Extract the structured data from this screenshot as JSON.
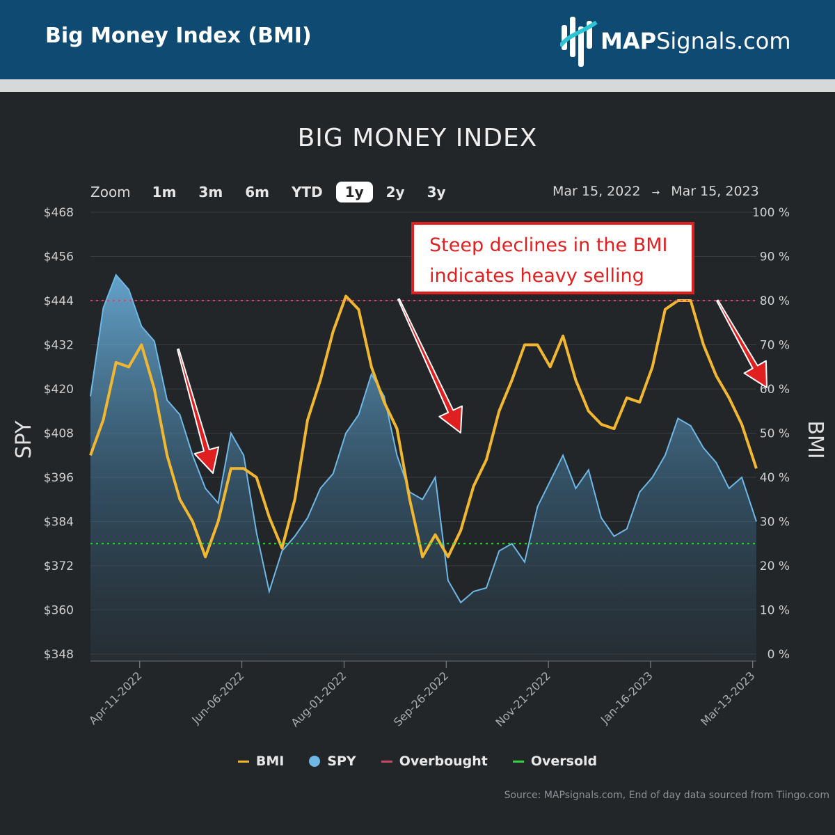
{
  "header": {
    "title": "Big Money Index (BMI)",
    "logo_bold": "MAP",
    "logo_rest": "Signals.com",
    "logo_icon": "mapsignals-bars-logo"
  },
  "toolbar": {
    "zoom_label": "Zoom",
    "zoom_options": [
      "1m",
      "3m",
      "6m",
      "YTD",
      "1y",
      "2y",
      "3y"
    ],
    "active_zoom": "1y",
    "range_start": "Mar 15, 2022",
    "range_arrow": "→",
    "range_end": "Mar 15, 2023"
  },
  "annotation": {
    "line1": "Steep declines in the BMI",
    "line2": "indicates heavy selling"
  },
  "source": "Source: MAPsignals.com, End of day data sourced from Tiingo.com",
  "colors": {
    "bmi": "#f2b731",
    "spy": "#6fb8e6",
    "overbought": "#c94a6a",
    "oversold": "#32d33f",
    "arrow": "#e02020"
  },
  "chart_data": {
    "type": "line",
    "title": "BIG MONEY INDEX",
    "y_left_label": "SPY",
    "y_right_label": "BMI",
    "y_left_ticks": [
      "$468",
      "$456",
      "$444",
      "$432",
      "$420",
      "$408",
      "$396",
      "$384",
      "$372",
      "$360",
      "$348"
    ],
    "y_right_ticks": [
      "100 %",
      "90 %",
      "80 %",
      "70 %",
      "60 %",
      "50 %",
      "40 %",
      "30 %",
      "20 %",
      "10 %",
      "0 %"
    ],
    "y_left_range": [
      348,
      468
    ],
    "y_right_range": [
      0,
      100
    ],
    "x_range": [
      "2022-03-15",
      "2023-03-15"
    ],
    "x_ticks": [
      "Apr-11-2022",
      "Jun-06-2022",
      "Aug-01-2022",
      "Sep-26-2022",
      "Nov-21-2022",
      "Jan-16-2023",
      "Mar-13-2023"
    ],
    "overbought_level": 80,
    "oversold_level": 25,
    "legend": [
      "BMI",
      "SPY",
      "Overbought",
      "Oversold"
    ],
    "legend_position": "bottom",
    "series": [
      {
        "name": "SPY",
        "style": "area",
        "x": [
          "2022-03-15",
          "2022-03-22",
          "2022-03-29",
          "2022-04-05",
          "2022-04-12",
          "2022-04-19",
          "2022-04-26",
          "2022-05-03",
          "2022-05-10",
          "2022-05-17",
          "2022-05-24",
          "2022-05-31",
          "2022-06-07",
          "2022-06-14",
          "2022-06-21",
          "2022-06-28",
          "2022-07-05",
          "2022-07-12",
          "2022-07-19",
          "2022-07-26",
          "2022-08-02",
          "2022-08-09",
          "2022-08-16",
          "2022-08-23",
          "2022-08-30",
          "2022-09-06",
          "2022-09-13",
          "2022-09-20",
          "2022-09-27",
          "2022-10-04",
          "2022-10-11",
          "2022-10-18",
          "2022-10-25",
          "2022-11-01",
          "2022-11-08",
          "2022-11-15",
          "2022-11-22",
          "2022-11-29",
          "2022-12-06",
          "2022-12-13",
          "2022-12-20",
          "2022-12-27",
          "2023-01-03",
          "2023-01-10",
          "2023-01-17",
          "2023-01-24",
          "2023-01-31",
          "2023-02-07",
          "2023-02-14",
          "2023-02-21",
          "2023-02-28",
          "2023-03-07",
          "2023-03-15"
        ],
        "values": [
          418,
          442,
          451,
          447,
          437,
          433,
          417,
          413,
          402,
          393,
          389,
          408,
          402,
          381,
          365,
          376,
          380,
          385,
          393,
          397,
          408,
          413,
          424,
          418,
          402,
          392,
          390,
          396,
          368,
          362,
          365,
          366,
          376,
          378,
          373,
          388,
          395,
          402,
          393,
          398,
          385,
          380,
          382,
          392,
          396,
          402,
          412,
          410,
          404,
          400,
          393,
          396,
          384
        ]
      },
      {
        "name": "BMI",
        "style": "line",
        "x": [
          "2022-03-15",
          "2022-03-22",
          "2022-03-29",
          "2022-04-05",
          "2022-04-12",
          "2022-04-19",
          "2022-04-26",
          "2022-05-03",
          "2022-05-10",
          "2022-05-17",
          "2022-05-24",
          "2022-05-31",
          "2022-06-07",
          "2022-06-14",
          "2022-06-21",
          "2022-06-28",
          "2022-07-05",
          "2022-07-12",
          "2022-07-19",
          "2022-07-26",
          "2022-08-02",
          "2022-08-09",
          "2022-08-16",
          "2022-08-23",
          "2022-08-30",
          "2022-09-06",
          "2022-09-13",
          "2022-09-20",
          "2022-09-27",
          "2022-10-04",
          "2022-10-11",
          "2022-10-18",
          "2022-10-25",
          "2022-11-01",
          "2022-11-08",
          "2022-11-15",
          "2022-11-22",
          "2022-11-29",
          "2022-12-06",
          "2022-12-13",
          "2022-12-20",
          "2022-12-27",
          "2023-01-03",
          "2023-01-10",
          "2023-01-17",
          "2023-01-24",
          "2023-01-31",
          "2023-02-07",
          "2023-02-14",
          "2023-02-21",
          "2023-02-28",
          "2023-03-07",
          "2023-03-15"
        ],
        "values": [
          45,
          53,
          66,
          65,
          70,
          60,
          45,
          35,
          30,
          22,
          30,
          42,
          42,
          40,
          31,
          24,
          35,
          53,
          62,
          73,
          81,
          78,
          65,
          57,
          51,
          35,
          22,
          27,
          22,
          28,
          38,
          44,
          55,
          62,
          70,
          70,
          65,
          72,
          62,
          55,
          52,
          51,
          58,
          57,
          65,
          78,
          80,
          80,
          70,
          63,
          58,
          52,
          42
        ]
      }
    ]
  }
}
